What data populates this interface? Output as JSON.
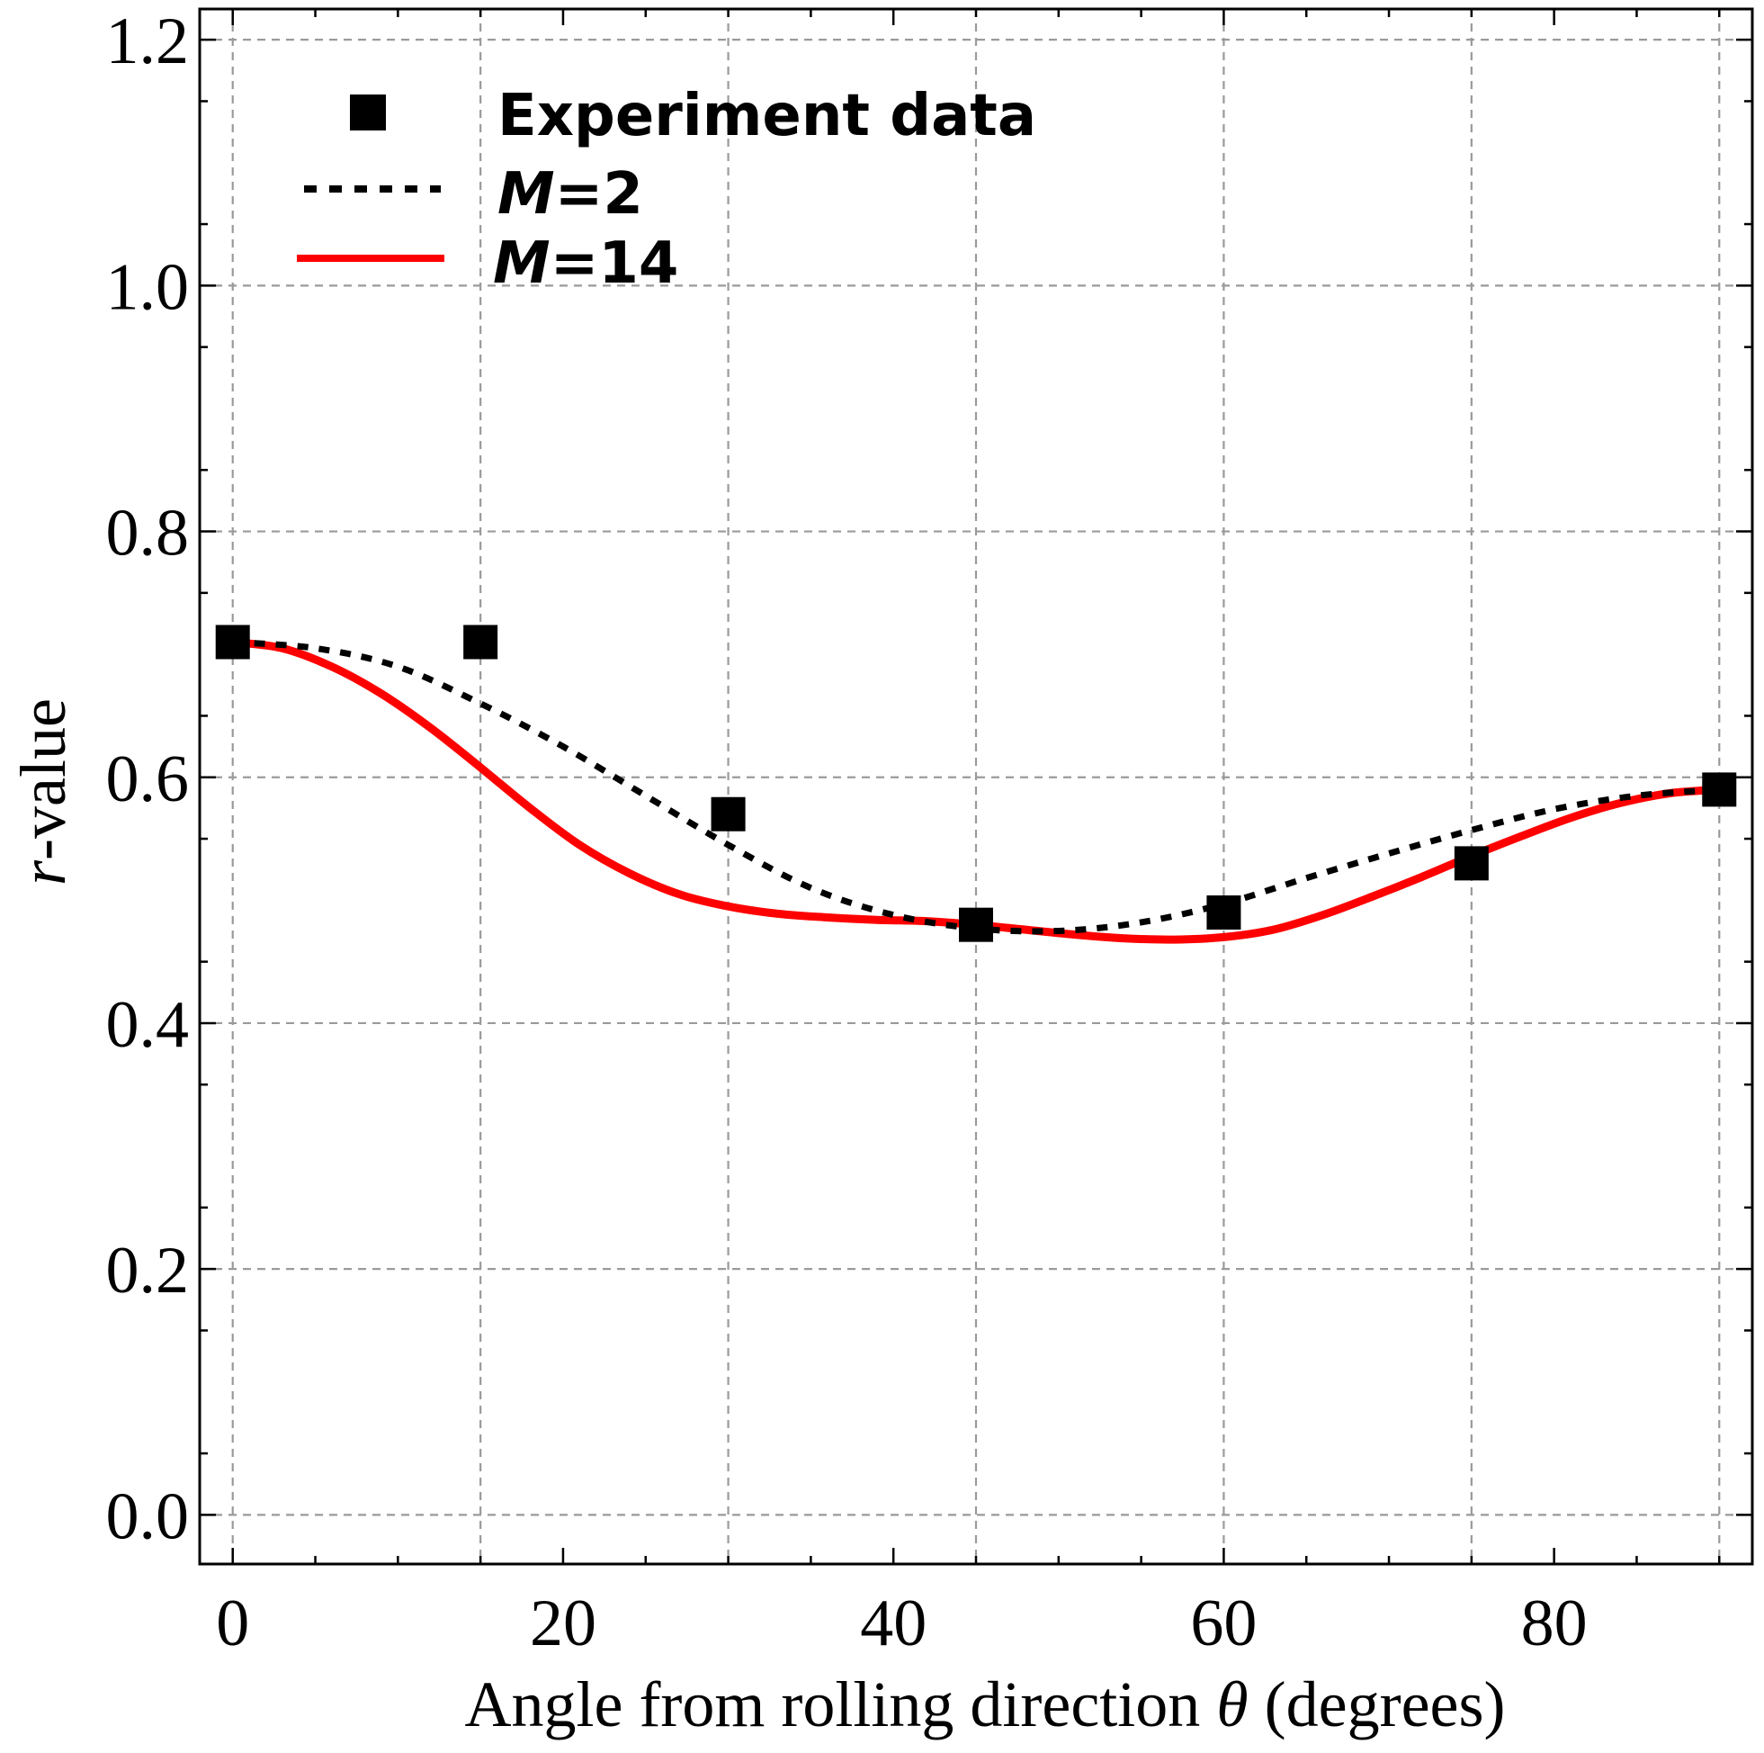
{
  "chart_data": {
    "type": "line",
    "title": "",
    "xlabel": "Angle from rolling direction",
    "xlabel_symbol": "θ",
    "xlabel_units": "(degrees)",
    "ylabel_symbol": "r",
    "ylabel_suffix": "-value",
    "xlim": [
      -2,
      92
    ],
    "ylim": [
      -0.04,
      1.225
    ],
    "xticks": [
      0,
      20,
      40,
      60,
      80
    ],
    "xtick_labels": [
      "0",
      "20",
      "40",
      "60",
      "80"
    ],
    "yticks": [
      0.0,
      0.2,
      0.4,
      0.6,
      0.8,
      1.0,
      1.2
    ],
    "ytick_labels": [
      "0.0",
      "0.2",
      "0.4",
      "0.6",
      "0.8",
      "1.0",
      "1.2"
    ],
    "x_grid": [
      0,
      15,
      30,
      45,
      60,
      75,
      90
    ],
    "y_grid": [
      0.0,
      0.2,
      0.4,
      0.6,
      0.8,
      1.0,
      1.2
    ],
    "legend_position": "top-left",
    "series": [
      {
        "name": "Experiment data",
        "kind": "scatter",
        "marker": "square",
        "color": "#000000",
        "x": [
          0,
          15,
          30,
          45,
          60,
          75,
          90
        ],
        "y": [
          0.71,
          0.71,
          0.57,
          0.48,
          0.49,
          0.53,
          0.59
        ]
      },
      {
        "name": "M=2",
        "label_var": "M",
        "label_value": "=2",
        "kind": "line",
        "style": "dotted",
        "color": "#000000",
        "x": [
          0,
          5,
          10,
          15,
          20,
          25,
          30,
          35,
          40,
          45,
          50,
          55,
          60,
          65,
          70,
          75,
          80,
          85,
          90
        ],
        "y": [
          0.71,
          0.705,
          0.69,
          0.66,
          0.625,
          0.585,
          0.545,
          0.51,
          0.488,
          0.477,
          0.475,
          0.482,
          0.497,
          0.518,
          0.538,
          0.557,
          0.574,
          0.585,
          0.59
        ]
      },
      {
        "name": "M=14",
        "label_var": "M",
        "label_value": "=14",
        "kind": "line",
        "style": "solid",
        "color": "#ff0000",
        "x": [
          0,
          3,
          6,
          9,
          12,
          15,
          18,
          21,
          24,
          27,
          30,
          33,
          36,
          39,
          42,
          45,
          48,
          51,
          54,
          57,
          60,
          63,
          66,
          69,
          72,
          75,
          78,
          81,
          84,
          87,
          90
        ],
        "y": [
          0.71,
          0.705,
          0.69,
          0.668,
          0.64,
          0.608,
          0.575,
          0.545,
          0.522,
          0.505,
          0.495,
          0.489,
          0.486,
          0.484,
          0.483,
          0.48,
          0.476,
          0.472,
          0.469,
          0.468,
          0.47,
          0.476,
          0.488,
          0.503,
          0.519,
          0.536,
          0.552,
          0.567,
          0.579,
          0.587,
          0.59
        ]
      }
    ]
  }
}
